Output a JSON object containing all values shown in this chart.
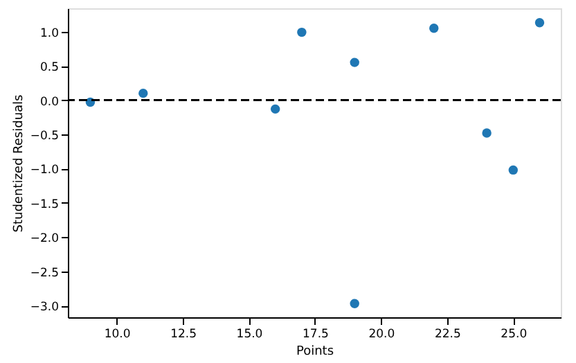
{
  "chart_data": {
    "type": "scatter",
    "xlabel": "Points",
    "ylabel": "Studentized Residuals",
    "x": [
      9,
      11,
      16,
      17,
      19,
      19,
      22,
      24,
      25,
      26
    ],
    "series": [
      {
        "color": "#1f77b4",
        "values": [
          -0.03,
          0.1,
          -0.13,
          0.99,
          0.55,
          -2.97,
          1.05,
          -0.48,
          -1.02,
          1.13
        ]
      }
    ],
    "xlim": [
      8.15,
      26.8
    ],
    "ylim": [
      -3.17,
      1.34
    ],
    "xticks": [
      {
        "value": 10,
        "label": "10.0"
      },
      {
        "value": 12.5,
        "label": "12.5"
      },
      {
        "value": 15,
        "label": "15.0"
      },
      {
        "value": 17.5,
        "label": "17.5"
      },
      {
        "value": 20,
        "label": "20.0"
      },
      {
        "value": 22.5,
        "label": "22.5"
      },
      {
        "value": 25,
        "label": "25.0"
      }
    ],
    "yticks": [
      {
        "value": -3,
        "label": "−3.0"
      },
      {
        "value": -2.5,
        "label": "−2.5"
      },
      {
        "value": -2,
        "label": "−2.0"
      },
      {
        "value": -1.5,
        "label": "−1.5"
      },
      {
        "value": -1,
        "label": "−1.0"
      },
      {
        "value": -0.5,
        "label": "−0.5"
      },
      {
        "value": 0,
        "label": "0.0"
      },
      {
        "value": 0.5,
        "label": "0.5"
      },
      {
        "value": 1,
        "label": "1.0"
      }
    ],
    "ref_lines": [
      {
        "axis": "y",
        "value": 0,
        "color": "#000000",
        "line_style": "dashed"
      }
    ],
    "marker": "circle",
    "grid": false
  }
}
